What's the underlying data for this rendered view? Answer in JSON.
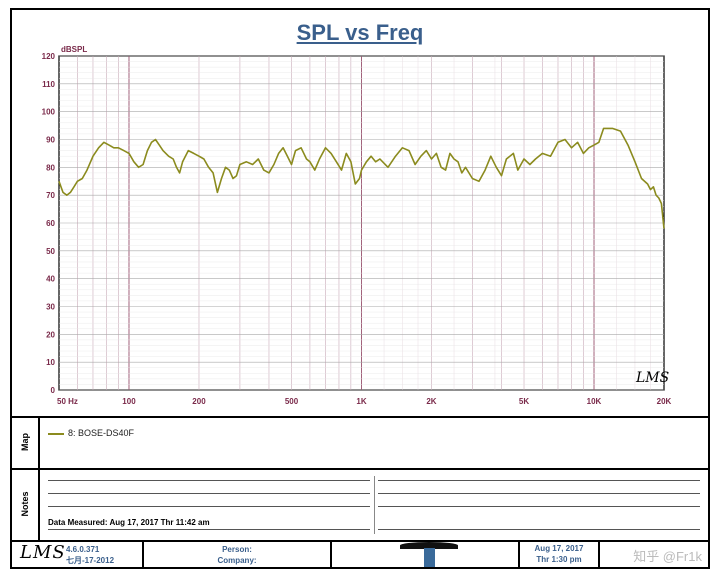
{
  "chart_data": {
    "type": "line",
    "title": "SPL vs Freq",
    "ylabel": "dBSPL",
    "xlim": [
      50,
      20000
    ],
    "ylim": [
      0,
      120
    ],
    "x_scale": "log",
    "grid": true,
    "y_ticks": [
      0,
      10,
      20,
      30,
      40,
      50,
      60,
      70,
      80,
      90,
      100,
      110,
      120
    ],
    "x_ticks": [
      {
        "value": 50,
        "label": "50 Hz"
      },
      {
        "value": 100,
        "label": "100"
      },
      {
        "value": 200,
        "label": "200"
      },
      {
        "value": 500,
        "label": "500"
      },
      {
        "value": 1000,
        "label": "1K"
      },
      {
        "value": 2000,
        "label": "2K"
      },
      {
        "value": 5000,
        "label": "5K"
      },
      {
        "value": 10000,
        "label": "10K"
      },
      {
        "value": 20000,
        "label": "20K"
      }
    ],
    "series": [
      {
        "name": "8: BOSE-DS40F",
        "color": "#8b8b1e",
        "points": [
          [
            50,
            75
          ],
          [
            52,
            71
          ],
          [
            54,
            70
          ],
          [
            56,
            71
          ],
          [
            58,
            73
          ],
          [
            60,
            75
          ],
          [
            63,
            76
          ],
          [
            66,
            79
          ],
          [
            70,
            84
          ],
          [
            74,
            87
          ],
          [
            78,
            89
          ],
          [
            82,
            88
          ],
          [
            86,
            87
          ],
          [
            90,
            87
          ],
          [
            95,
            86
          ],
          [
            100,
            85
          ],
          [
            105,
            82
          ],
          [
            110,
            80
          ],
          [
            115,
            81
          ],
          [
            120,
            86
          ],
          [
            125,
            89
          ],
          [
            130,
            90
          ],
          [
            135,
            88
          ],
          [
            140,
            86
          ],
          [
            148,
            84
          ],
          [
            155,
            83
          ],
          [
            160,
            80
          ],
          [
            165,
            78
          ],
          [
            170,
            82
          ],
          [
            180,
            86
          ],
          [
            190,
            85
          ],
          [
            200,
            84
          ],
          [
            210,
            83
          ],
          [
            220,
            80
          ],
          [
            230,
            78
          ],
          [
            240,
            71
          ],
          [
            250,
            76
          ],
          [
            260,
            80
          ],
          [
            270,
            79
          ],
          [
            280,
            76
          ],
          [
            290,
            77
          ],
          [
            300,
            81
          ],
          [
            320,
            82
          ],
          [
            340,
            81
          ],
          [
            360,
            83
          ],
          [
            380,
            79
          ],
          [
            400,
            78
          ],
          [
            420,
            81
          ],
          [
            440,
            85
          ],
          [
            460,
            87
          ],
          [
            480,
            84
          ],
          [
            500,
            81
          ],
          [
            520,
            86
          ],
          [
            550,
            87
          ],
          [
            580,
            83
          ],
          [
            600,
            82
          ],
          [
            630,
            79
          ],
          [
            660,
            83
          ],
          [
            700,
            87
          ],
          [
            740,
            85
          ],
          [
            780,
            82
          ],
          [
            820,
            79
          ],
          [
            860,
            85
          ],
          [
            900,
            82
          ],
          [
            940,
            74
          ],
          [
            980,
            76
          ],
          [
            1000,
            79
          ],
          [
            1050,
            82
          ],
          [
            1100,
            84
          ],
          [
            1150,
            82
          ],
          [
            1200,
            83
          ],
          [
            1300,
            80
          ],
          [
            1400,
            84
          ],
          [
            1500,
            87
          ],
          [
            1600,
            86
          ],
          [
            1700,
            81
          ],
          [
            1800,
            84
          ],
          [
            1900,
            86
          ],
          [
            2000,
            83
          ],
          [
            2100,
            85
          ],
          [
            2200,
            80
          ],
          [
            2300,
            79
          ],
          [
            2400,
            85
          ],
          [
            2500,
            83
          ],
          [
            2600,
            82
          ],
          [
            2700,
            78
          ],
          [
            2800,
            80
          ],
          [
            3000,
            76
          ],
          [
            3200,
            75
          ],
          [
            3400,
            79
          ],
          [
            3600,
            84
          ],
          [
            3800,
            80
          ],
          [
            4000,
            77
          ],
          [
            4200,
            83
          ],
          [
            4500,
            85
          ],
          [
            4700,
            79
          ],
          [
            5000,
            83
          ],
          [
            5300,
            81
          ],
          [
            5600,
            83
          ],
          [
            6000,
            85
          ],
          [
            6500,
            84
          ],
          [
            7000,
            89
          ],
          [
            7500,
            90
          ],
          [
            8000,
            87
          ],
          [
            8500,
            89
          ],
          [
            9000,
            85
          ],
          [
            9500,
            87
          ],
          [
            10000,
            88
          ],
          [
            10500,
            89
          ],
          [
            11000,
            94
          ],
          [
            12000,
            94
          ],
          [
            13000,
            93
          ],
          [
            14000,
            88
          ],
          [
            15000,
            82
          ],
          [
            16000,
            76
          ],
          [
            17000,
            74
          ],
          [
            17500,
            72
          ],
          [
            18000,
            73
          ],
          [
            18500,
            70
          ],
          [
            19000,
            69
          ],
          [
            19500,
            67
          ],
          [
            20000,
            58
          ]
        ]
      }
    ]
  },
  "legend": {
    "label": "8: BOSE-DS40F"
  },
  "panels": {
    "map_label": "Map",
    "notes_label": "Notes"
  },
  "notes": {
    "date_measured": "Data Measured: Aug 17, 2017  Thr 11:42 am"
  },
  "footer": {
    "logo": "LMS",
    "version": "4.6.0.371",
    "version_date": "七月-17-2012",
    "person_label": "Person:",
    "company_label": "Company:",
    "date": "Aug 17, 2017",
    "time": "Thr 1:30 pm",
    "watermark": "知乎 @Fr1k"
  },
  "plot_mark": "LMS"
}
